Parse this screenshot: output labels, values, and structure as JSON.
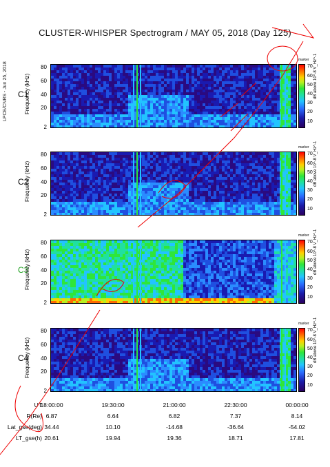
{
  "title": "CLUSTER-WHISPER Spectrogram / MAY 05, 2018 (Day 125)",
  "credit": "LPCE/CNRS - Jun 25, 2018",
  "colorbar": {
    "label": "dB above 10^-8 V_Hz^-1",
    "ticks": [
      "70",
      "60",
      "50",
      "40",
      "30",
      "20",
      "10"
    ],
    "marker": "marker"
  },
  "chart_data": [
    {
      "type": "heatmap",
      "panel": "C1",
      "ylabel": "Frequency (kHz)",
      "yticks": [
        "80",
        "60",
        "40",
        "20",
        "2"
      ],
      "ylim": [
        2,
        80
      ],
      "label_color": "#000000"
    },
    {
      "type": "heatmap",
      "panel": "C2",
      "ylabel": "Frequency (kHz)",
      "yticks": [
        "80",
        "60",
        "40",
        "20",
        "2"
      ],
      "ylim": [
        2,
        80
      ],
      "label_color": "#000000"
    },
    {
      "type": "heatmap",
      "panel": "C3",
      "ylabel": "Frequency (kHz)",
      "yticks": [
        "80",
        "60",
        "40",
        "20",
        "2"
      ],
      "ylim": [
        2,
        80
      ],
      "label_color": "#1fa01f"
    },
    {
      "type": "heatmap",
      "panel": "C4",
      "ylabel": "Frequency (kHz)",
      "yticks": [
        "80",
        "60",
        "40",
        "20",
        "2"
      ],
      "ylim": [
        2,
        80
      ],
      "label_color": "#000000"
    }
  ],
  "axis": {
    "rows": [
      {
        "label": "UT",
        "values": [
          "18:00:00",
          "19:30:00",
          "21:00:00",
          "22:30:00",
          "00:00:00"
        ]
      },
      {
        "label": "R(Re)",
        "values": [
          "6.87",
          "6.64",
          "6.82",
          "7.37",
          "8.14"
        ]
      },
      {
        "label": "Lat_gse(deg)",
        "values": [
          "34.44",
          "10.10",
          "-14.68",
          "-36.64",
          "-54.02"
        ]
      },
      {
        "label": "LT_gse(h)",
        "values": [
          "20.61",
          "19.94",
          "19.36",
          "18.71",
          "17.81"
        ]
      }
    ]
  },
  "colors": {
    "c3_label": "#1fa01f"
  }
}
